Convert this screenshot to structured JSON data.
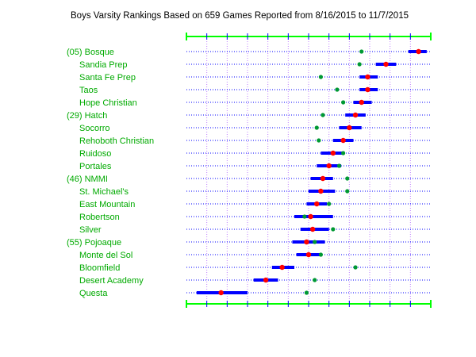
{
  "title": "Boys Varsity Rankings Based on 659 Games Reported from 8/16/2015 to 11/7/2015",
  "colors": {
    "label": "#00aa00",
    "interval": "#0000ff",
    "estimate": "#ff0000",
    "comparison": "#009933",
    "frame": "#00ff00",
    "ticks": "#0000ff",
    "row_line": "#0000ff",
    "grid": "#bf80ff"
  },
  "chart_data": {
    "type": "scatter",
    "title": "Boys Varsity Rankings Based on 659 Games Reported from 8/16/2015 to 11/7/2015",
    "xlabel": "",
    "ylabel": "",
    "xlim": [
      0,
      12
    ],
    "grid": true,
    "legend": "none",
    "teams": [
      {
        "label": "(05) Bosque",
        "estimate": 11.4,
        "low": 10.9,
        "high": 11.8,
        "comparison": 8.6
      },
      {
        "label": "Sandia Prep",
        "estimate": 9.8,
        "low": 9.3,
        "high": 10.3,
        "comparison": 8.5
      },
      {
        "label": "Santa Fe Prep",
        "estimate": 8.9,
        "low": 8.5,
        "high": 9.4,
        "comparison": 6.6
      },
      {
        "label": "Taos",
        "estimate": 8.9,
        "low": 8.5,
        "high": 9.4,
        "comparison": 7.4
      },
      {
        "label": "Hope Christian",
        "estimate": 8.6,
        "low": 8.2,
        "high": 9.1,
        "comparison": 7.7
      },
      {
        "label": "(29) Hatch",
        "estimate": 8.3,
        "low": 7.8,
        "high": 8.8,
        "comparison": 6.7
      },
      {
        "label": "Socorro",
        "estimate": 8.0,
        "low": 7.5,
        "high": 8.6,
        "comparison": 6.4
      },
      {
        "label": "Rehoboth Christian",
        "estimate": 7.7,
        "low": 7.2,
        "high": 8.2,
        "comparison": 6.5
      },
      {
        "label": "Ruidoso",
        "estimate": 7.2,
        "low": 6.6,
        "high": 7.7,
        "comparison": 7.7
      },
      {
        "label": "Portales",
        "estimate": 7.0,
        "low": 6.4,
        "high": 7.6,
        "comparison": 7.5
      },
      {
        "label": "(46) NMMI",
        "estimate": 6.7,
        "low": 6.1,
        "high": 7.2,
        "comparison": 7.9
      },
      {
        "label": "St. Michael's",
        "estimate": 6.6,
        "low": 6.0,
        "high": 7.3,
        "comparison": 7.9
      },
      {
        "label": "East Mountain",
        "estimate": 6.4,
        "low": 5.9,
        "high": 6.9,
        "comparison": 7.0
      },
      {
        "label": "Robertson",
        "estimate": 6.1,
        "low": 5.3,
        "high": 7.2,
        "comparison": 5.8
      },
      {
        "label": "Silver",
        "estimate": 6.2,
        "low": 5.6,
        "high": 7.0,
        "comparison": 7.2
      },
      {
        "label": "(55) Pojoaque",
        "estimate": 5.9,
        "low": 5.2,
        "high": 6.8,
        "comparison": 6.3
      },
      {
        "label": "Monte del Sol",
        "estimate": 6.0,
        "low": 5.4,
        "high": 6.6,
        "comparison": 6.6
      },
      {
        "label": "Bloomfield",
        "estimate": 4.7,
        "low": 4.2,
        "high": 5.3,
        "comparison": 8.3
      },
      {
        "label": "Desert Academy",
        "estimate": 3.9,
        "low": 3.3,
        "high": 4.5,
        "comparison": 6.3
      },
      {
        "label": "Questa",
        "estimate": 1.7,
        "low": 0.5,
        "high": 3.0,
        "comparison": 5.9
      }
    ]
  }
}
